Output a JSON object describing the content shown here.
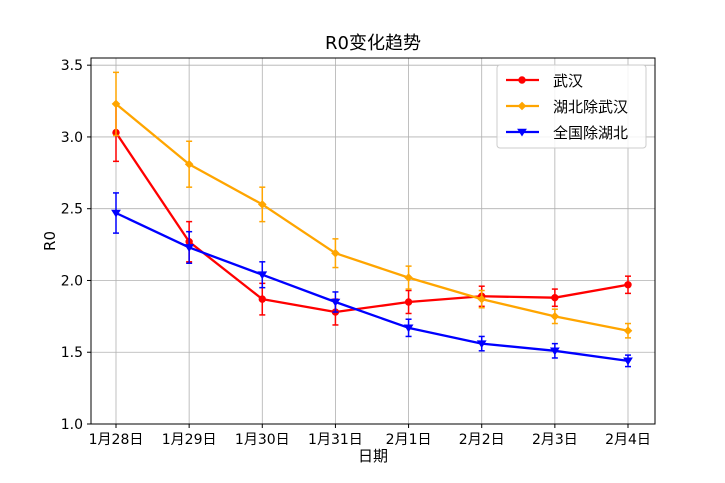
{
  "chart_data": {
    "type": "line",
    "title": "R0变化趋势",
    "xlabel": "日期",
    "ylabel": "R0",
    "categories": [
      "1月28日",
      "1月29日",
      "1月30日",
      "1月31日",
      "2月1日",
      "2月2日",
      "2月3日",
      "2月4日"
    ],
    "ylim": [
      1.0,
      3.55
    ],
    "yticks": [
      "1.0",
      "1.5",
      "2.0",
      "2.5",
      "3.0",
      "3.5"
    ],
    "grid": true,
    "legend_position": "top-right",
    "series": [
      {
        "name": "武汉",
        "color": "#ff0000",
        "marker": "circle",
        "values": [
          3.03,
          2.27,
          1.87,
          1.78,
          1.85,
          1.89,
          1.88,
          1.97
        ],
        "errors": [
          0.2,
          0.14,
          0.11,
          0.09,
          0.08,
          0.07,
          0.06,
          0.06
        ]
      },
      {
        "name": "湖北除武汉",
        "color": "#ffa500",
        "marker": "diamond",
        "values": [
          3.23,
          2.81,
          2.53,
          2.19,
          2.02,
          1.87,
          1.75,
          1.65
        ],
        "errors": [
          0.22,
          0.16,
          0.12,
          0.1,
          0.08,
          0.06,
          0.05,
          0.05
        ]
      },
      {
        "name": "全国除湖北",
        "color": "#0000ff",
        "marker": "triangle-down",
        "values": [
          2.47,
          2.23,
          2.04,
          1.85,
          1.67,
          1.56,
          1.51,
          1.44
        ],
        "errors": [
          0.14,
          0.11,
          0.09,
          0.07,
          0.06,
          0.05,
          0.05,
          0.04
        ]
      }
    ]
  }
}
